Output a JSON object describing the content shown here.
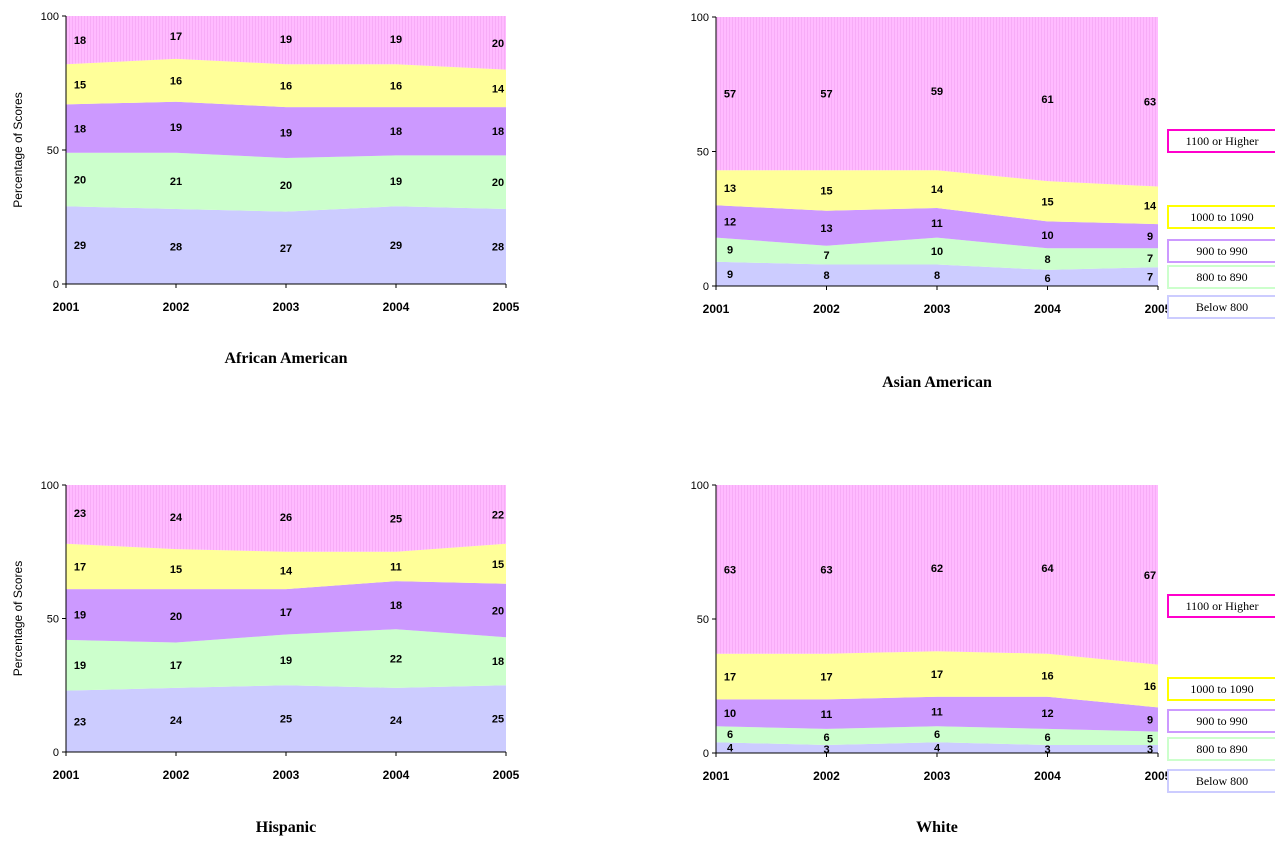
{
  "figure": {
    "series_names": [
      "Below 800",
      "800 to 890",
      "900 to 990",
      "1000 to 1090",
      "1100 or Higher"
    ],
    "series_colors": [
      "#ccccff",
      "#ccffcc",
      "#cc99ff",
      "#ffff99",
      "#ffbbff"
    ],
    "legend_border_colors": [
      "#ccccff",
      "#ccffcc",
      "#cc99ff",
      "#ffff00",
      "#ff00cc"
    ]
  },
  "chart_data": [
    {
      "type": "area",
      "stacked": true,
      "title": "African American",
      "ylabel": "Percentage of Scores",
      "x": [
        "2001",
        "2002",
        "2003",
        "2004",
        "2005"
      ],
      "ylim": [
        0,
        100
      ],
      "yticks": [
        "0",
        "50",
        "100"
      ],
      "legend": false,
      "series": [
        {
          "name": "Below 800",
          "values": [
            29,
            28,
            27,
            29,
            28
          ]
        },
        {
          "name": "800 to 890",
          "values": [
            20,
            21,
            20,
            19,
            20
          ]
        },
        {
          "name": "900 to 990",
          "values": [
            18,
            19,
            19,
            18,
            18
          ]
        },
        {
          "name": "1000 to 1090",
          "values": [
            15,
            16,
            16,
            16,
            14
          ]
        },
        {
          "name": "1100 or Higher",
          "values": [
            18,
            17,
            19,
            19,
            20
          ]
        }
      ]
    },
    {
      "type": "area",
      "stacked": true,
      "title": "Asian American",
      "ylabel": "",
      "x": [
        "2001",
        "2002",
        "2003",
        "2004",
        "2005"
      ],
      "ylim": [
        0,
        100
      ],
      "yticks": [
        "0",
        "50",
        "100"
      ],
      "legend": true,
      "series": [
        {
          "name": "Below 800",
          "values": [
            9,
            8,
            8,
            6,
            7
          ]
        },
        {
          "name": "800 to 890",
          "values": [
            9,
            7,
            10,
            8,
            7
          ]
        },
        {
          "name": "900 to 990",
          "values": [
            12,
            13,
            11,
            10,
            9
          ]
        },
        {
          "name": "1000 to 1090",
          "values": [
            13,
            15,
            14,
            15,
            14
          ]
        },
        {
          "name": "1100 or Higher",
          "values": [
            57,
            57,
            59,
            61,
            63
          ]
        }
      ]
    },
    {
      "type": "area",
      "stacked": true,
      "title": "Hispanic",
      "ylabel": "Percentage of Scores",
      "x": [
        "2001",
        "2002",
        "2003",
        "2004",
        "2005"
      ],
      "ylim": [
        0,
        100
      ],
      "yticks": [
        "0",
        "50",
        "100"
      ],
      "legend": false,
      "series": [
        {
          "name": "Below 800",
          "values": [
            23,
            24,
            25,
            24,
            25
          ]
        },
        {
          "name": "800 to 890",
          "values": [
            19,
            17,
            19,
            22,
            18
          ]
        },
        {
          "name": "900 to 990",
          "values": [
            19,
            20,
            17,
            18,
            20
          ]
        },
        {
          "name": "1000 to 1090",
          "values": [
            17,
            15,
            14,
            11,
            15
          ]
        },
        {
          "name": "1100 or Higher",
          "values": [
            23,
            24,
            26,
            25,
            22
          ]
        }
      ]
    },
    {
      "type": "area",
      "stacked": true,
      "title": "White",
      "ylabel": "",
      "x": [
        "2001",
        "2002",
        "2003",
        "2004",
        "2005"
      ],
      "ylim": [
        0,
        100
      ],
      "yticks": [
        "0",
        "50",
        "100"
      ],
      "legend": true,
      "series": [
        {
          "name": "Below 800",
          "values": [
            4,
            3,
            4,
            3,
            3
          ]
        },
        {
          "name": "800 to 890",
          "values": [
            6,
            6,
            6,
            6,
            5
          ]
        },
        {
          "name": "900 to 990",
          "values": [
            10,
            11,
            11,
            12,
            9
          ]
        },
        {
          "name": "1000 to 1090",
          "values": [
            17,
            17,
            17,
            16,
            16
          ]
        },
        {
          "name": "1100 or Higher",
          "values": [
            63,
            63,
            62,
            64,
            67
          ]
        }
      ]
    }
  ]
}
